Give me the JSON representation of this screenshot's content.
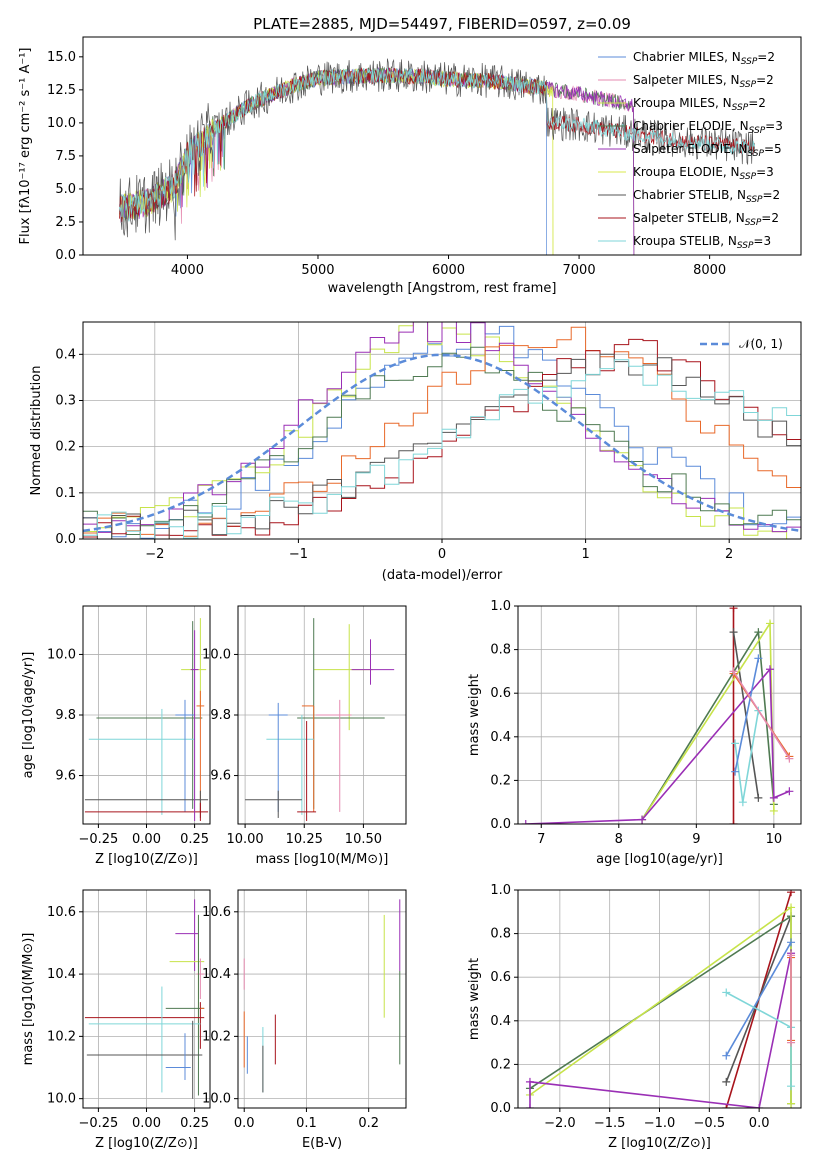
{
  "colors": {
    "Chabrier MILES": "#5b8bd9",
    "Salpeter MILES": "#e58bb0",
    "Kroupa MILES": "#c7e34a",
    "Chabrier ELODIE": "#4f7a52",
    "Salpeter ELODIE": "#9a2fb5",
    "Kroupa ELODIE": "#d8e84c",
    "Chabrier STELIB": "#555555",
    "Salpeter STELIB": "#a8141c",
    "Kroupa STELIB": "#7fd6d8",
    "orange": "#e8692a",
    "gauss": "#5b8bd9"
  },
  "chart_data": [
    {
      "id": "spectrum",
      "type": "line",
      "title": "PLATE=2885, MJD=54497, FIBERID=0597, z=0.09",
      "xlabel": "wavelength [Angstrom, rest frame]",
      "ylabel": "Flux [fλ10⁻¹⁷ erg cm⁻² s⁻¹ A⁻¹]",
      "xlim": [
        3200,
        8700
      ],
      "ylim": [
        0,
        16.5
      ],
      "xticks": [
        4000,
        5000,
        6000,
        7000,
        8000
      ],
      "yticks": [
        0.0,
        2.5,
        5.0,
        7.5,
        10.0,
        12.5,
        15.0
      ],
      "legend_position": "top-right",
      "legend": [
        {
          "label": "Chabrier MILES, N",
          "sub": "SSP",
          "suffix": "=2",
          "key": "Chabrier MILES"
        },
        {
          "label": "Salpeter MILES, N",
          "sub": "SSP",
          "suffix": "=2",
          "key": "Salpeter MILES"
        },
        {
          "label": "Kroupa MILES, N",
          "sub": "SSP",
          "suffix": "=2",
          "key": "Kroupa MILES"
        },
        {
          "label": "Chabrier ELODIE, N",
          "sub": "SSP",
          "suffix": "=3",
          "key": "Chabrier ELODIE"
        },
        {
          "label": "Salpeter ELODIE, N",
          "sub": "SSP",
          "suffix": "=5",
          "key": "Salpeter ELODIE"
        },
        {
          "label": "Kroupa ELODIE, N",
          "sub": "SSP",
          "suffix": "=3",
          "key": "Kroupa ELODIE"
        },
        {
          "label": "Chabrier STELIB, N",
          "sub": "SSP",
          "suffix": "=2",
          "key": "Chabrier STELIB"
        },
        {
          "label": "Salpeter STELIB, N",
          "sub": "SSP",
          "suffix": "=2",
          "key": "Salpeter STELIB"
        },
        {
          "label": "Kroupa STELIB, N",
          "sub": "SSP",
          "suffix": "=3",
          "key": "Kroupa STELIB"
        }
      ],
      "continuum": [
        [
          3500,
          3.5
        ],
        [
          3700,
          4.0
        ],
        [
          3900,
          5.2
        ],
        [
          4000,
          7.5
        ],
        [
          4200,
          9.5
        ],
        [
          4500,
          11.5
        ],
        [
          4800,
          12.8
        ],
        [
          5000,
          13.4
        ],
        [
          5200,
          13.5
        ],
        [
          5500,
          13.6
        ],
        [
          5800,
          13.5
        ],
        [
          6000,
          13.3
        ],
        [
          6300,
          13.2
        ],
        [
          6600,
          12.8
        ],
        [
          7000,
          12.2
        ],
        [
          7400,
          11.3
        ],
        [
          7800,
          10.5
        ],
        [
          8300,
          9.7
        ]
      ],
      "series": [
        {
          "name": "Chabrier MILES",
          "end": 6750
        },
        {
          "name": "Salpeter MILES",
          "end": 7420
        },
        {
          "name": "Kroupa MILES",
          "end": 6800
        },
        {
          "name": "Chabrier ELODIE",
          "end": 7420
        },
        {
          "name": "Salpeter ELODIE",
          "end": 7420
        },
        {
          "name": "Kroupa ELODIE",
          "end": 6800
        },
        {
          "name": "Chabrier STELIB",
          "end": 8350
        },
        {
          "name": "Salpeter STELIB",
          "end": 8350
        },
        {
          "name": "Kroupa STELIB",
          "end": 8350
        }
      ]
    },
    {
      "id": "residuals",
      "type": "line",
      "xlabel": "(data-model)/error",
      "ylabel": "Normed distribution",
      "xlim": [
        -2.5,
        2.5
      ],
      "ylim": [
        0,
        0.47
      ],
      "xticks": [
        -2,
        -1,
        0,
        1,
        2
      ],
      "xtick_labels": [
        "−2",
        "−1",
        "0",
        "1",
        "2"
      ],
      "yticks": [
        0.0,
        0.1,
        0.2,
        0.3,
        0.4
      ],
      "gauss_label": "𝒩(0, 1)",
      "bins": 50,
      "hist_series": [
        {
          "key": "Chabrier MILES",
          "mu": 0.25,
          "sigma": 0.9,
          "peak": 0.42
        },
        {
          "key": "Kroupa MILES",
          "mu": 0.0,
          "sigma": 0.85,
          "peak": 0.43
        },
        {
          "key": "Salpeter ELODIE",
          "mu": 0.0,
          "sigma": 0.9,
          "peak": 0.44
        },
        {
          "key": "Chabrier ELODIE",
          "mu": 0.1,
          "sigma": 0.9,
          "peak": 0.38
        },
        {
          "key": "orange",
          "mu": 0.8,
          "sigma": 1.0,
          "peak": 0.42
        },
        {
          "key": "Salpeter STELIB",
          "mu": 1.3,
          "sigma": 1.0,
          "peak": 0.38
        },
        {
          "key": "Chabrier STELIB",
          "mu": 1.2,
          "sigma": 1.1,
          "peak": 0.37
        },
        {
          "key": "Kroupa STELIB",
          "mu": 1.3,
          "sigma": 1.2,
          "peak": 0.34
        }
      ]
    },
    {
      "id": "age-vs-Z",
      "type": "scatter",
      "xlabel": "Z [log10(Z/Z⊙)]",
      "ylabel": "age  [log10(age/yr)]",
      "xlim": [
        -0.33,
        0.33
      ],
      "ylim": [
        9.44,
        10.16
      ],
      "xticks": [
        -0.25,
        0.0,
        0.25
      ],
      "xtick_labels": [
        "−0.25",
        "0.00",
        "0.25"
      ],
      "yticks": [
        9.6,
        9.8,
        10.0
      ],
      "points": [
        {
          "key": "Kroupa MILES",
          "x": 0.28,
          "y": 9.95,
          "xerr": [
            0.1,
            0.03
          ],
          "yerr": [
            0.15,
            0.17
          ]
        },
        {
          "key": "Chabrier ELODIE",
          "x": 0.24,
          "y": 9.79,
          "xerr": [
            0.5,
            0.05
          ],
          "yerr": [
            0.3,
            0.32
          ]
        },
        {
          "key": "orange",
          "x": 0.28,
          "y": 9.83,
          "xerr": [
            0.02,
            0.02
          ],
          "yerr": [
            0.35,
            0.05
          ]
        },
        {
          "key": "Kroupa STELIB",
          "x": 0.08,
          "y": 9.72,
          "xerr": [
            0.38,
            0.17
          ],
          "yerr": [
            0.25,
            0.1
          ]
        },
        {
          "key": "Chabrier MILES",
          "x": 0.2,
          "y": 9.8,
          "xerr": [
            0.05,
            0.05
          ],
          "yerr": [
            0.32,
            0.05
          ]
        },
        {
          "key": "Chabrier STELIB",
          "x": 0.28,
          "y": 9.52,
          "xerr": [
            0.6,
            0.04
          ],
          "yerr": [
            0.06,
            0.03
          ]
        },
        {
          "key": "Salpeter STELIB",
          "x": 0.28,
          "y": 9.48,
          "xerr": [
            0.6,
            0.04
          ],
          "yerr": [
            0.03,
            0.03
          ]
        },
        {
          "key": "Salpeter ELODIE",
          "x": 0.25,
          "y": 9.95,
          "xerr": [
            0.02,
            0.02
          ],
          "yerr": [
            0.5,
            0.13
          ]
        }
      ]
    },
    {
      "id": "age-vs-mass",
      "type": "scatter",
      "xlabel": "mass [log10(M/M⊙)]",
      "ylabel": "",
      "xlim": [
        9.97,
        10.68
      ],
      "ylim": [
        9.44,
        10.16
      ],
      "xticks": [
        10.0,
        10.25,
        10.5
      ],
      "xtick_labels": [
        "10.00",
        "10.25",
        "10.50"
      ],
      "yticks": [
        9.6,
        9.8,
        10.0
      ],
      "points": [
        {
          "key": "Kroupa MILES",
          "x": 10.44,
          "y": 9.95,
          "xerr": [
            0.15,
            0.1
          ],
          "yerr": [
            0.2,
            0.15
          ]
        },
        {
          "key": "Salpeter ELODIE",
          "x": 10.53,
          "y": 9.95,
          "xerr": [
            0.08,
            0.1
          ],
          "yerr": [
            0.05,
            0.1
          ]
        },
        {
          "key": "Chabrier ELODIE",
          "x": 10.29,
          "y": 9.79,
          "xerr": [
            0.07,
            0.3
          ],
          "yerr": [
            0.3,
            0.33
          ]
        },
        {
          "key": "orange",
          "x": 10.29,
          "y": 9.83,
          "xerr": [
            0.05,
            0.0
          ],
          "yerr": [
            0.35,
            0.0
          ]
        },
        {
          "key": "Salpeter MILES",
          "x": 10.4,
          "y": 9.8,
          "xerr": [
            0.1,
            0.05
          ],
          "yerr": [
            0.32,
            0.05
          ]
        },
        {
          "key": "Kroupa STELIB",
          "x": 10.24,
          "y": 9.72,
          "xerr": [
            0.15,
            0.05
          ],
          "yerr": [
            0.25,
            0.08
          ]
        },
        {
          "key": "Chabrier MILES",
          "x": 10.14,
          "y": 9.8,
          "xerr": [
            0.04,
            0.04
          ],
          "yerr": [
            0.32,
            0.04
          ]
        },
        {
          "key": "Chabrier STELIB",
          "x": 10.14,
          "y": 9.52,
          "xerr": [
            0.14,
            0.1
          ],
          "yerr": [
            0.06,
            0.03
          ]
        },
        {
          "key": "Salpeter STELIB",
          "x": 10.26,
          "y": 9.48,
          "xerr": [
            0.04,
            0.04
          ],
          "yerr": [
            0.03,
            0.3
          ]
        }
      ]
    },
    {
      "id": "weight-vs-age",
      "type": "line",
      "xlabel": "age  [log10(age/yr)]",
      "ylabel": "mass weight",
      "xlim": [
        6.7,
        10.35
      ],
      "ylim": [
        0.0,
        1.0
      ],
      "xticks": [
        7,
        8,
        9,
        10
      ],
      "yticks": [
        0.0,
        0.2,
        0.4,
        0.6,
        0.8,
        1.0
      ],
      "lines": [
        {
          "key": "Salpeter STELIB",
          "x": [
            9.48,
            9.48
          ],
          "y": [
            0.0,
            0.99
          ]
        },
        {
          "key": "Chabrier STELIB",
          "x": [
            9.48,
            9.8
          ],
          "y": [
            0.88,
            0.12
          ]
        },
        {
          "key": "Chabrier ELODIE",
          "x": [
            8.3,
            9.8,
            10.0
          ],
          "y": [
            0.02,
            0.88,
            0.09
          ]
        },
        {
          "key": "Kroupa MILES",
          "x": [
            8.3,
            9.95,
            10.0
          ],
          "y": [
            0.02,
            0.92,
            0.06
          ]
        },
        {
          "key": "Salpeter ELODIE",
          "x": [
            6.8,
            8.3,
            9.95,
            10.0,
            10.2
          ],
          "y": [
            0.0,
            0.02,
            0.71,
            0.12,
            0.15
          ]
        },
        {
          "key": "orange",
          "x": [
            9.48,
            10.2
          ],
          "y": [
            0.69,
            0.31
          ]
        },
        {
          "key": "Kroupa STELIB",
          "x": [
            9.5,
            9.6,
            9.8
          ],
          "y": [
            0.37,
            0.1,
            0.52
          ]
        },
        {
          "key": "Chabrier MILES",
          "x": [
            9.5,
            9.8
          ],
          "y": [
            0.24,
            0.76
          ]
        },
        {
          "key": "Salpeter MILES",
          "x": [
            9.48,
            10.2
          ],
          "y": [
            0.7,
            0.3
          ]
        }
      ]
    },
    {
      "id": "mass-vs-Z",
      "type": "scatter",
      "xlabel": "Z [log10(Z/Z⊙)]",
      "ylabel": "mass [log10(M/M⊙)]",
      "xlim": [
        -0.33,
        0.33
      ],
      "ylim": [
        9.97,
        10.67
      ],
      "xticks": [
        -0.25,
        0.0,
        0.25
      ],
      "xtick_labels": [
        "−0.25",
        "0.00",
        "0.25"
      ],
      "yticks": [
        10.0,
        10.2,
        10.4,
        10.6
      ],
      "points": [
        {
          "key": "Salpeter ELODIE",
          "x": 0.25,
          "y": 10.53,
          "xerr": [
            0.1,
            0.02
          ],
          "yerr": [
            0.12,
            0.11
          ]
        },
        {
          "key": "Kroupa MILES",
          "x": 0.27,
          "y": 10.44,
          "xerr": [
            0.15,
            0.03
          ],
          "yerr": [
            0.25,
            0.15
          ]
        },
        {
          "key": "Salpeter MILES",
          "x": 0.28,
          "y": 10.4,
          "xerr": [
            0.02,
            0.02
          ],
          "yerr": [
            0.08,
            0.05
          ]
        },
        {
          "key": "Chabrier ELODIE",
          "x": 0.27,
          "y": 10.29,
          "xerr": [
            0.17,
            0.03
          ],
          "yerr": [
            0.28,
            0.3
          ]
        },
        {
          "key": "Salpeter STELIB",
          "x": 0.28,
          "y": 10.26,
          "xerr": [
            0.6,
            0.02
          ],
          "yerr": [
            0.1,
            0.05
          ]
        },
        {
          "key": "Kroupa STELIB",
          "x": 0.08,
          "y": 10.24,
          "xerr": [
            0.38,
            0.2
          ],
          "yerr": [
            0.22,
            0.12
          ]
        },
        {
          "key": "Chabrier STELIB",
          "x": 0.24,
          "y": 10.14,
          "xerr": [
            0.55,
            0.05
          ],
          "yerr": [
            0.14,
            0.11
          ]
        },
        {
          "key": "Chabrier MILES",
          "x": 0.2,
          "y": 10.1,
          "xerr": [
            0.1,
            0.03
          ],
          "yerr": [
            0.04,
            0.11
          ]
        },
        {
          "key": "orange",
          "x": 0.28,
          "y": 10.29,
          "xerr": [
            0.0,
            0.02
          ],
          "yerr": [
            0.0,
            0.0
          ]
        }
      ]
    },
    {
      "id": "mass-vs-ebv",
      "type": "scatter",
      "xlabel": "E(B-V)",
      "ylabel": "",
      "xlim": [
        -0.01,
        0.26
      ],
      "ylim": [
        9.97,
        10.67
      ],
      "xticks": [
        0.0,
        0.1,
        0.2
      ],
      "xtick_labels": [
        "0.0",
        "0.1",
        "0.2"
      ],
      "yticks": [
        10.0,
        10.2,
        10.4,
        10.6
      ],
      "points": [
        {
          "key": "Salpeter ELODIE",
          "x": 0.25,
          "y": 10.53,
          "yerr": [
            0.12,
            0.11
          ]
        },
        {
          "key": "Kroupa MILES",
          "x": 0.225,
          "y": 10.44,
          "yerr": [
            0.18,
            0.15
          ]
        },
        {
          "key": "Chabrier ELODIE",
          "x": 0.25,
          "y": 10.29,
          "yerr": [
            0.18,
            0.12
          ]
        },
        {
          "key": "Salpeter MILES",
          "x": 0.0,
          "y": 10.4,
          "yerr": [
            0.05,
            0.05
          ]
        },
        {
          "key": "orange",
          "x": 0.0,
          "y": 10.2,
          "yerr": [
            0.1,
            0.08
          ]
        },
        {
          "key": "Chabrier MILES",
          "x": 0.005,
          "y": 10.14,
          "yerr": [
            0.06,
            0.06
          ]
        },
        {
          "key": "Kroupa STELIB",
          "x": 0.03,
          "y": 10.15,
          "yerr": [
            0.13,
            0.08
          ]
        },
        {
          "key": "Chabrier STELIB",
          "x": 0.03,
          "y": 10.1,
          "yerr": [
            0.08,
            0.07
          ]
        },
        {
          "key": "Salpeter STELIB",
          "x": 0.05,
          "y": 10.2,
          "yerr": [
            0.09,
            0.07
          ]
        }
      ]
    },
    {
      "id": "weight-vs-Z",
      "type": "line",
      "xlabel": "Z [log10(Z/Z⊙)]",
      "ylabel": "mass weight",
      "xlim": [
        -2.42,
        0.42
      ],
      "ylim": [
        0.0,
        1.0
      ],
      "xticks": [
        -2.0,
        -1.5,
        -1.0,
        -0.5,
        0.0
      ],
      "xtick_labels": [
        "−2.0",
        "−1.5",
        "−1.0",
        "−0.5",
        "0.0"
      ],
      "yticks": [
        0.0,
        0.2,
        0.4,
        0.6,
        0.8,
        1.0
      ],
      "lines": [
        {
          "key": "Salpeter STELIB",
          "x": [
            -0.33,
            0.32
          ],
          "y": [
            0.0,
            0.99
          ]
        },
        {
          "key": "Chabrier STELIB",
          "x": [
            -0.33,
            0.32
          ],
          "y": [
            0.12,
            0.88
          ]
        },
        {
          "key": "Chabrier ELODIE",
          "x": [
            -2.3,
            0.32,
            0.32
          ],
          "y": [
            0.09,
            0.88,
            0.02
          ]
        },
        {
          "key": "Kroupa MILES",
          "x": [
            -2.3,
            0.32,
            0.32
          ],
          "y": [
            0.06,
            0.92,
            0.02
          ]
        },
        {
          "key": "Salpeter ELODIE",
          "x": [
            -2.3,
            -2.3,
            0.0,
            0.32
          ],
          "y": [
            0.0,
            0.12,
            0.0,
            0.71
          ]
        },
        {
          "key": "Chabrier MILES",
          "x": [
            -0.33,
            0.32
          ],
          "y": [
            0.24,
            0.76
          ]
        },
        {
          "key": "Kroupa STELIB",
          "x": [
            -0.33,
            0.32,
            0.32
          ],
          "y": [
            0.53,
            0.37,
            0.1
          ]
        },
        {
          "key": "orange",
          "x": [
            0.32,
            0.32
          ],
          "y": [
            0.69,
            0.31
          ]
        },
        {
          "key": "Salpeter MILES",
          "x": [
            0.32,
            0.32
          ],
          "y": [
            0.7,
            0.3
          ]
        }
      ]
    }
  ]
}
